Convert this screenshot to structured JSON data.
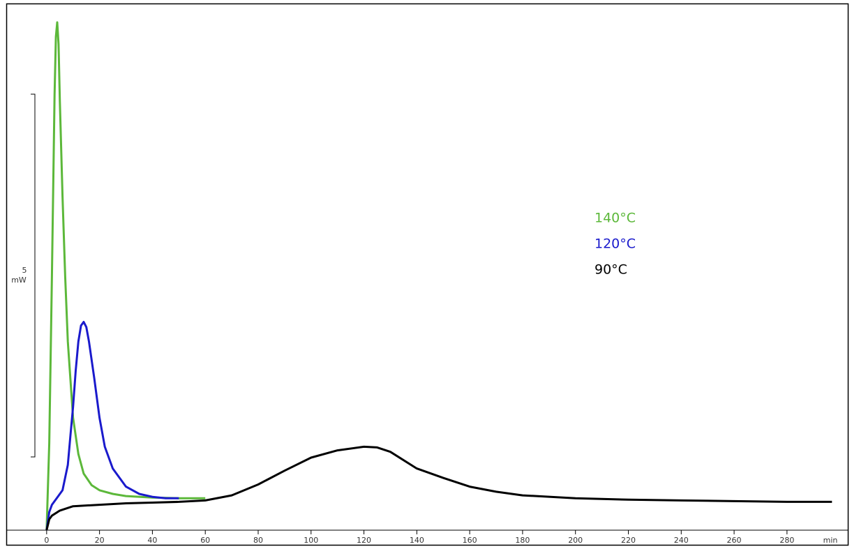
{
  "chart_data": {
    "type": "line",
    "x_label": "min",
    "xlim": [
      -15,
      303
    ],
    "ylim": [
      0,
      7.25
    ],
    "xticks": [
      0,
      20,
      40,
      60,
      80,
      100,
      120,
      140,
      160,
      180,
      200,
      220,
      240,
      260,
      280
    ],
    "scale_bar": {
      "value": 5,
      "label": "mW"
    },
    "series": [
      {
        "name": "140°C",
        "color": "#5cb83a",
        "x": [
          0,
          1,
          2,
          3,
          3.5,
          4,
          4.5,
          5,
          6,
          7,
          8,
          10,
          12,
          14,
          17,
          20,
          25,
          30,
          40,
          50,
          60
        ],
        "values": [
          0,
          1.2,
          3.5,
          6.0,
          6.8,
          7.0,
          6.7,
          5.9,
          4.6,
          3.5,
          2.6,
          1.55,
          1.05,
          0.78,
          0.62,
          0.55,
          0.5,
          0.47,
          0.45,
          0.44,
          0.44
        ]
      },
      {
        "name": "120°C",
        "color": "#1a1acc",
        "x": [
          0,
          1,
          2,
          4,
          6,
          8,
          9,
          10,
          11,
          12,
          13,
          14,
          15,
          16,
          18,
          20,
          22,
          25,
          30,
          35,
          40,
          45,
          50
        ],
        "values": [
          0,
          0.25,
          0.35,
          0.45,
          0.55,
          0.9,
          1.3,
          1.7,
          2.2,
          2.6,
          2.82,
          2.87,
          2.8,
          2.6,
          2.1,
          1.55,
          1.15,
          0.85,
          0.6,
          0.5,
          0.46,
          0.44,
          0.44
        ]
      },
      {
        "name": "90°C",
        "color": "#000000",
        "x": [
          0,
          1,
          2,
          5,
          10,
          20,
          30,
          40,
          50,
          60,
          70,
          80,
          90,
          100,
          110,
          120,
          125,
          130,
          140,
          150,
          160,
          170,
          180,
          200,
          220,
          240,
          260,
          280,
          297
        ],
        "values": [
          0,
          0.15,
          0.2,
          0.27,
          0.33,
          0.35,
          0.37,
          0.38,
          0.39,
          0.41,
          0.48,
          0.63,
          0.82,
          1.0,
          1.1,
          1.15,
          1.14,
          1.08,
          0.85,
          0.72,
          0.6,
          0.53,
          0.48,
          0.44,
          0.42,
          0.41,
          0.4,
          0.39,
          0.39
        ]
      }
    ]
  }
}
